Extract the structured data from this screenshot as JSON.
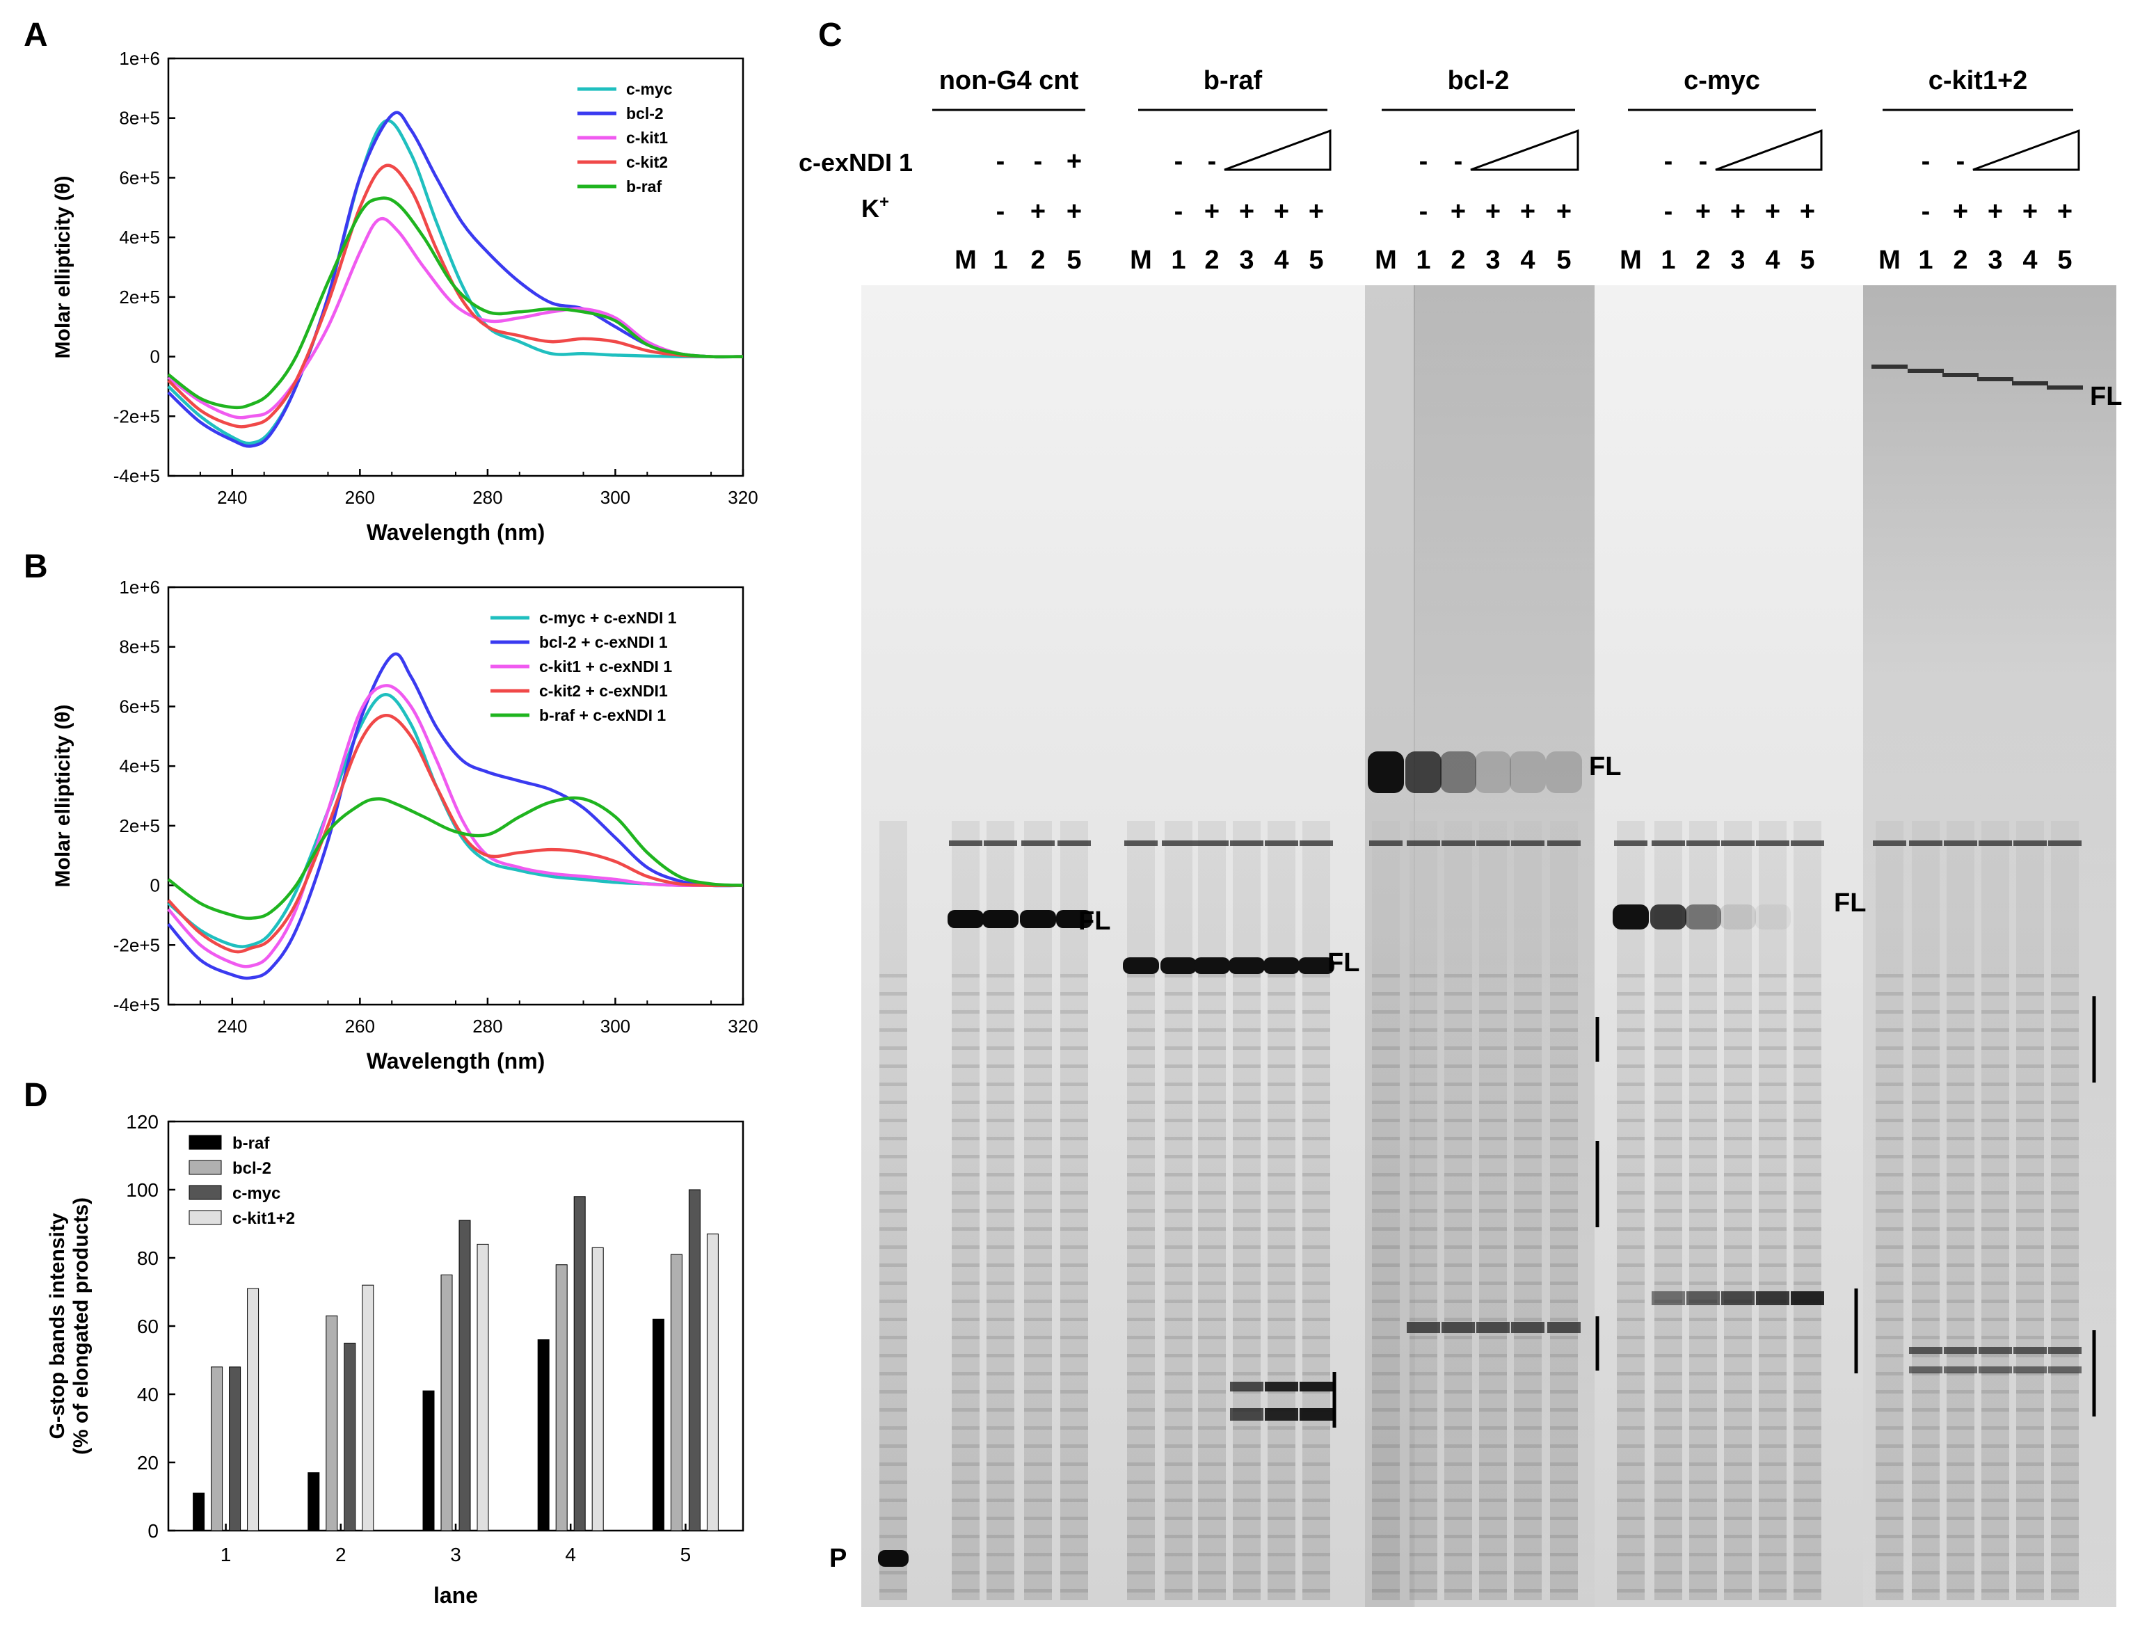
{
  "panels": {
    "a": "A",
    "b": "B",
    "c": "C",
    "d": "D"
  },
  "chart_data": [
    {
      "panel": "A",
      "type": "line",
      "xlabel": "Wavelength (nm)",
      "ylabel": "Molar ellipticity (θ)",
      "xlim": [
        230,
        320
      ],
      "ylim": [
        -400000,
        1000000
      ],
      "xticks": [
        "240",
        "260",
        "280",
        "300",
        "320"
      ],
      "yticks": [
        "1e+6",
        "8e+5",
        "6e+5",
        "4e+5",
        "2e+5",
        "0",
        "-2e+5",
        "-4e+5"
      ],
      "legend_position": "top-right",
      "series": [
        {
          "name": "c-myc",
          "color": "#1fbfbf",
          "x": [
            230,
            235,
            240,
            243,
            246,
            250,
            255,
            260,
            264,
            268,
            272,
            276,
            280,
            285,
            290,
            295,
            300,
            305,
            310,
            315,
            320
          ],
          "y": [
            -100000,
            -200000,
            -270000,
            -290000,
            -250000,
            -100000,
            200000,
            600000,
            790000,
            680000,
            450000,
            240000,
            100000,
            50000,
            10000,
            10000,
            5000,
            2000,
            0,
            0,
            0
          ]
        },
        {
          "name": "bcl-2",
          "color": "#3a3af0",
          "x": [
            230,
            235,
            240,
            243,
            246,
            250,
            255,
            260,
            265,
            268,
            272,
            276,
            280,
            285,
            290,
            295,
            300,
            305,
            310,
            315,
            320
          ],
          "y": [
            -120000,
            -220000,
            -280000,
            -300000,
            -260000,
            -100000,
            200000,
            600000,
            810000,
            760000,
            600000,
            450000,
            350000,
            250000,
            180000,
            160000,
            100000,
            40000,
            10000,
            0,
            0
          ]
        },
        {
          "name": "c-kit1",
          "color": "#f05af0",
          "x": [
            230,
            235,
            240,
            243,
            246,
            250,
            255,
            260,
            263,
            266,
            270,
            275,
            280,
            285,
            290,
            295,
            300,
            305,
            310,
            315,
            320
          ],
          "y": [
            -70000,
            -150000,
            -200000,
            -200000,
            -180000,
            -80000,
            100000,
            350000,
            460000,
            420000,
            300000,
            170000,
            120000,
            130000,
            150000,
            160000,
            130000,
            50000,
            10000,
            0,
            0
          ]
        },
        {
          "name": "c-kit2",
          "color": "#f04848",
          "x": [
            230,
            235,
            240,
            243,
            246,
            250,
            255,
            260,
            264,
            268,
            272,
            276,
            280,
            285,
            290,
            295,
            300,
            305,
            310,
            315,
            320
          ],
          "y": [
            -80000,
            -180000,
            -230000,
            -230000,
            -200000,
            -80000,
            180000,
            500000,
            640000,
            560000,
            360000,
            190000,
            100000,
            70000,
            50000,
            60000,
            50000,
            20000,
            5000,
            0,
            0
          ]
        },
        {
          "name": "b-raf",
          "color": "#1fb41f",
          "x": [
            230,
            235,
            240,
            243,
            246,
            250,
            255,
            260,
            263,
            266,
            270,
            275,
            280,
            285,
            290,
            295,
            300,
            305,
            310,
            315,
            320
          ],
          "y": [
            -60000,
            -140000,
            -170000,
            -160000,
            -120000,
            0,
            250000,
            480000,
            530000,
            510000,
            400000,
            230000,
            150000,
            150000,
            160000,
            150000,
            120000,
            40000,
            10000,
            0,
            0
          ]
        }
      ]
    },
    {
      "panel": "B",
      "type": "line",
      "xlabel": "Wavelength (nm)",
      "ylabel": "Molar ellipticity (θ)",
      "xlim": [
        230,
        320
      ],
      "ylim": [
        -400000,
        1000000
      ],
      "xticks": [
        "240",
        "260",
        "280",
        "300",
        "320"
      ],
      "yticks": [
        "1e+6",
        "8e+5",
        "6e+5",
        "4e+5",
        "2e+5",
        "0",
        "-2e+5",
        "-4e+5"
      ],
      "legend_position": "top-right",
      "series": [
        {
          "name": "c-myc + c-exNDI 1",
          "color": "#1fbfbf",
          "x": [
            230,
            235,
            240,
            243,
            246,
            250,
            255,
            260,
            264,
            268,
            272,
            276,
            280,
            285,
            290,
            295,
            300,
            305,
            310,
            315,
            320
          ],
          "y": [
            -60000,
            -150000,
            -200000,
            -200000,
            -160000,
            -20000,
            250000,
            530000,
            640000,
            540000,
            330000,
            160000,
            80000,
            50000,
            30000,
            20000,
            10000,
            5000,
            0,
            0,
            0
          ]
        },
        {
          "name": "bcl-2 + c-exNDI 1",
          "color": "#3a3af0",
          "x": [
            230,
            235,
            240,
            243,
            246,
            250,
            255,
            260,
            265,
            268,
            272,
            276,
            280,
            285,
            290,
            295,
            300,
            305,
            310,
            315,
            320
          ],
          "y": [
            -130000,
            -250000,
            -300000,
            -310000,
            -280000,
            -150000,
            150000,
            550000,
            770000,
            700000,
            530000,
            420000,
            380000,
            350000,
            320000,
            260000,
            160000,
            60000,
            15000,
            0,
            0
          ]
        },
        {
          "name": "c-kit1 + c-exNDI 1",
          "color": "#f05af0",
          "x": [
            230,
            235,
            240,
            243,
            246,
            250,
            255,
            260,
            264,
            268,
            272,
            276,
            280,
            285,
            290,
            295,
            300,
            305,
            310,
            315,
            320
          ],
          "y": [
            -80000,
            -200000,
            -260000,
            -270000,
            -230000,
            -80000,
            250000,
            580000,
            670000,
            600000,
            420000,
            220000,
            100000,
            60000,
            40000,
            30000,
            20000,
            5000,
            0,
            0,
            0
          ]
        },
        {
          "name": "c-kit2 + c-exNDI1",
          "color": "#f04848",
          "x": [
            230,
            235,
            240,
            243,
            246,
            250,
            255,
            260,
            264,
            268,
            272,
            276,
            280,
            285,
            290,
            295,
            300,
            305,
            310,
            315,
            320
          ],
          "y": [
            -50000,
            -160000,
            -220000,
            -210000,
            -180000,
            -60000,
            200000,
            480000,
            570000,
            500000,
            330000,
            170000,
            100000,
            110000,
            120000,
            110000,
            80000,
            30000,
            5000,
            0,
            0
          ]
        },
        {
          "name": "b-raf + c-exNDI 1",
          "color": "#1fb41f",
          "x": [
            230,
            235,
            240,
            243,
            246,
            250,
            255,
            260,
            263,
            266,
            270,
            275,
            280,
            285,
            290,
            295,
            300,
            305,
            310,
            315,
            320
          ],
          "y": [
            20000,
            -60000,
            -100000,
            -110000,
            -90000,
            0,
            180000,
            270000,
            290000,
            270000,
            230000,
            180000,
            170000,
            230000,
            280000,
            290000,
            230000,
            110000,
            30000,
            5000,
            0
          ]
        }
      ]
    },
    {
      "panel": "D",
      "type": "bar",
      "xlabel": "lane",
      "ylabel_lines": [
        "G-stop bands intensity",
        "(% of elongated products)"
      ],
      "categories": [
        "1",
        "2",
        "3",
        "4",
        "5"
      ],
      "ylim": [
        0,
        120
      ],
      "yticks": [
        "0",
        "20",
        "40",
        "60",
        "80",
        "100",
        "120"
      ],
      "legend_position": "top-left",
      "series": [
        {
          "name": "b-raf",
          "color": "#000000",
          "values": [
            11,
            17,
            41,
            56,
            62
          ]
        },
        {
          "name": "bcl-2",
          "color": "#b0b0b0",
          "values": [
            48,
            63,
            75,
            78,
            81
          ]
        },
        {
          "name": "c-myc",
          "color": "#555555",
          "values": [
            48,
            55,
            91,
            98,
            100
          ]
        },
        {
          "name": "c-kit1+2",
          "color": "#e0e0e0",
          "values": [
            71,
            72,
            84,
            83,
            87
          ]
        }
      ]
    }
  ],
  "gel": {
    "row_labels": {
      "compound": "c-exNDI 1",
      "kplus_base": "K",
      "kplus_sup": "+"
    },
    "groups": [
      {
        "name": "non-G4 cnt",
        "lanes": [
          "M",
          "1",
          "2",
          "5"
        ],
        "compound": [
          "",
          "-",
          "-",
          "+"
        ],
        "kplus": [
          "",
          "-",
          "+",
          "+"
        ]
      },
      {
        "name": "b-raf",
        "lanes": [
          "M",
          "1",
          "2",
          "3",
          "4",
          "5"
        ],
        "compound": [
          "",
          "-",
          "-"
        ],
        "kplus": [
          "",
          "-",
          "+",
          "+",
          "+",
          "+"
        ]
      },
      {
        "name": "bcl-2",
        "lanes": [
          "M",
          "1",
          "2",
          "3",
          "4",
          "5"
        ],
        "compound": [
          "",
          "-",
          "-"
        ],
        "kplus": [
          "",
          "-",
          "+",
          "+",
          "+",
          "+"
        ]
      },
      {
        "name": "c-myc",
        "lanes": [
          "M",
          "1",
          "2",
          "3",
          "4",
          "5"
        ],
        "compound": [
          "",
          "-",
          "-"
        ],
        "kplus": [
          "",
          "-",
          "+",
          "+",
          "+",
          "+"
        ]
      },
      {
        "name": "c-kit1+2",
        "lanes": [
          "M",
          "1",
          "2",
          "3",
          "4",
          "5"
        ],
        "compound": [
          "",
          "-",
          "-"
        ],
        "kplus": [
          "",
          "-",
          "+",
          "+",
          "+",
          "+"
        ]
      }
    ],
    "band_labels": {
      "full_length": "FL",
      "primer": "P"
    }
  }
}
